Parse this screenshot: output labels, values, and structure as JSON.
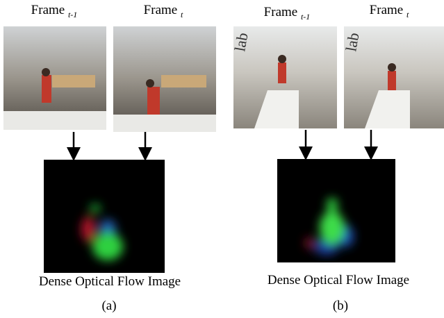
{
  "panels": [
    {
      "frames": [
        {
          "label": "Frame",
          "subscript": "t-1"
        },
        {
          "label": "Frame",
          "subscript": "t"
        }
      ],
      "flow_label": "Dense Optical Flow Image",
      "caption": "(a)"
    },
    {
      "frames": [
        {
          "label": "Frame",
          "subscript": "t-1"
        },
        {
          "label": "Frame",
          "subscript": "t"
        }
      ],
      "flow_label": "Dense Optical Flow Image",
      "caption": "(b)"
    }
  ]
}
